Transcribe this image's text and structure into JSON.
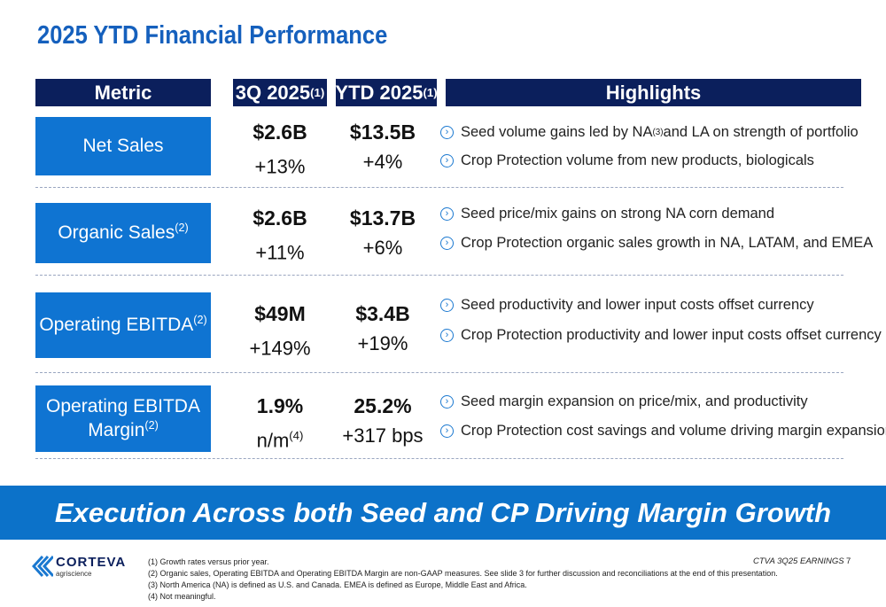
{
  "title": "2025 YTD Financial Performance",
  "header": {
    "metric": "Metric",
    "q3": "3Q 2025",
    "q3_sup": "(1)",
    "ytd": "YTD 2025",
    "ytd_sup": "(1)",
    "highlights": "Highlights"
  },
  "rows": [
    {
      "metric": "Net Sales",
      "metric_sup": "",
      "q3_value": "$2.6B",
      "q3_change": "+13%",
      "q3_change_sup": "",
      "ytd_value": "$13.5B",
      "ytd_change": "+4%",
      "bullets": [
        {
          "text": "Seed volume gains led by NA",
          "sup": "(3)",
          "rest": " and LA on strength of portfolio"
        },
        {
          "text": "Crop Protection volume from new products, biologicals",
          "sup": "",
          "rest": ""
        }
      ]
    },
    {
      "metric": "Organic Sales",
      "metric_sup": "(2)",
      "q3_value": "$2.6B",
      "q3_change": "+11%",
      "q3_change_sup": "",
      "ytd_value": "$13.7B",
      "ytd_change": "+6%",
      "bullets": [
        {
          "text": "Seed price/mix gains on strong NA corn demand",
          "sup": "",
          "rest": ""
        },
        {
          "text": "Crop Protection organic sales growth in NA, LATAM, and EMEA",
          "sup": "",
          "rest": ""
        }
      ]
    },
    {
      "metric": "Operating EBITDA",
      "metric_sup": "(2)",
      "q3_value": "$49M",
      "q3_change": "+149%",
      "q3_change_sup": "",
      "ytd_value": "$3.4B",
      "ytd_change": "+19%",
      "bullets": [
        {
          "text": "Seed productivity and lower input costs offset currency",
          "sup": "",
          "rest": ""
        },
        {
          "text": "Crop Protection productivity and lower input costs offset currency",
          "sup": "",
          "rest": ""
        }
      ]
    },
    {
      "metric": "Operating EBITDA",
      "metric_line2": "Margin",
      "metric_sup": "(2)",
      "q3_value": "1.9%",
      "q3_change": "n/m",
      "q3_change_sup": "(4)",
      "ytd_value": "25.2%",
      "ytd_change": "+317 bps",
      "bullets": [
        {
          "text": "Seed margin expansion on price/mix, and productivity",
          "sup": "",
          "rest": ""
        },
        {
          "text": "Crop Protection cost savings and volume driving margin expansion",
          "sup": "",
          "rest": ""
        }
      ]
    }
  ],
  "banner": "Execution Across both Seed and CP Driving Margin Growth",
  "logo": {
    "name": "CORTEVA",
    "sub": "agriscience"
  },
  "footnotes": [
    "(1)  Growth rates versus prior year.",
    "(2)  Organic sales, Operating EBITDA and Operating EBITDA Margin are non-GAAP measures. See slide 3 for further discussion and reconciliations at the end of this presentation.",
    "(3)  North America (NA) is defined as U.S. and Canada. EMEA is defined as Europe, Middle East and Africa.",
    "(4)  Not meaningful."
  ],
  "footer_label": "CTVA 3Q25 EARNINGS",
  "page_number": "7"
}
